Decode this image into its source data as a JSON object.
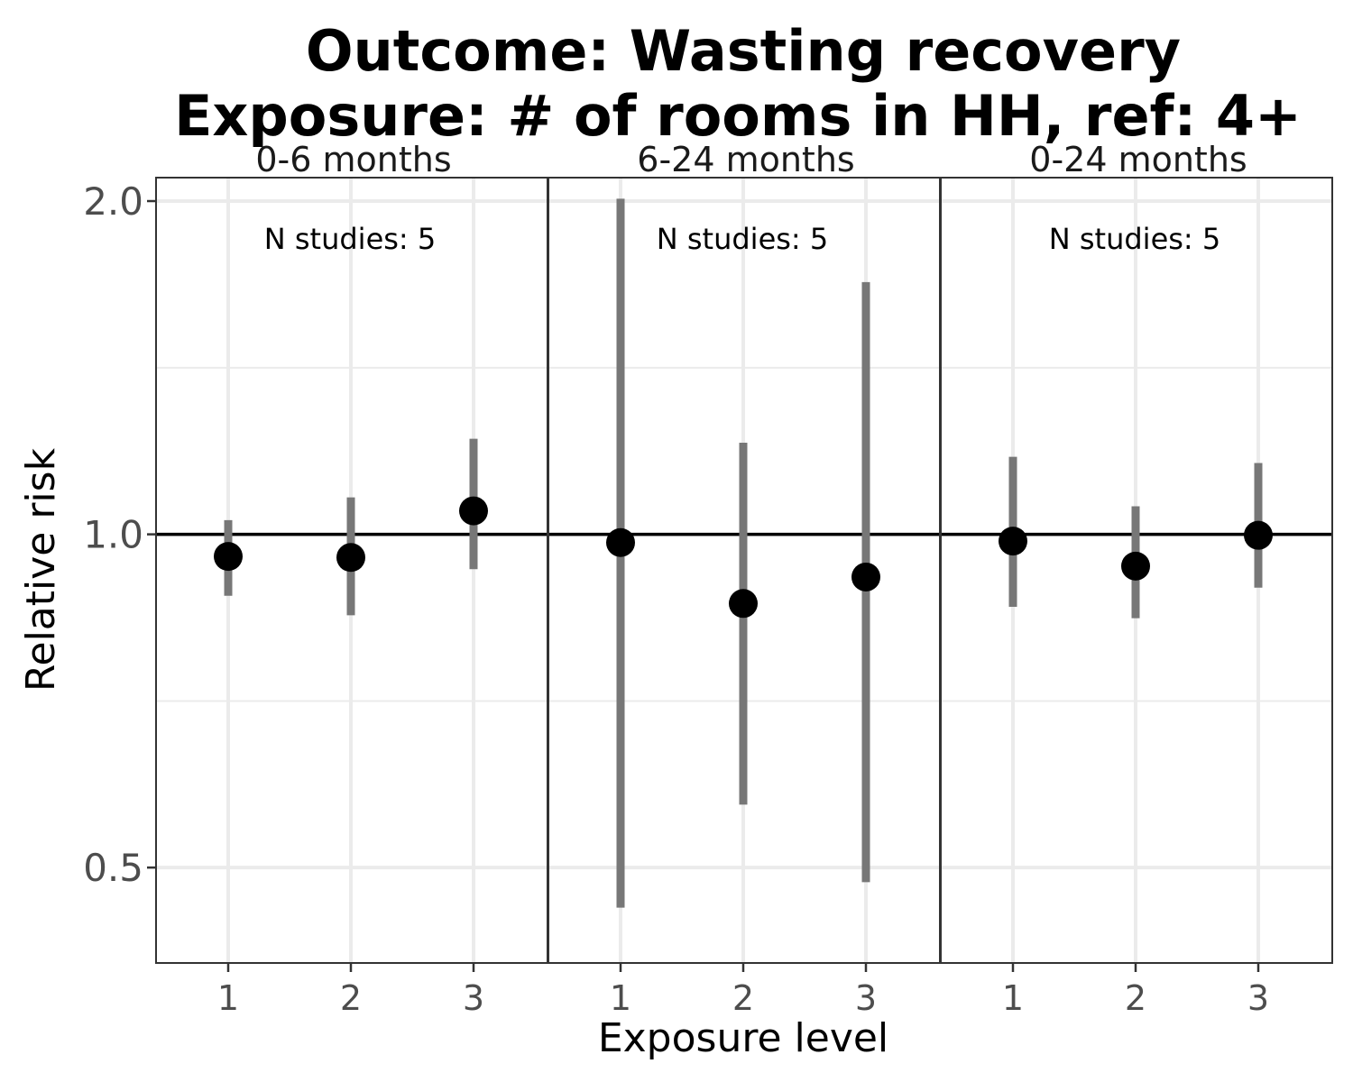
{
  "chart_data": {
    "type": "scatter",
    "title_line1": "Outcome: Wasting recovery",
    "title_line2": "Exposure: # of rooms in HH, ref: 4+",
    "xlabel": "Exposure level",
    "ylabel": "Relative risk",
    "y_scale": "log",
    "ylim": [
      0.41,
      2.1
    ],
    "y_ticks": [
      {
        "value": 0.5,
        "label": "0.5"
      },
      {
        "value": 1.0,
        "label": "1.0"
      },
      {
        "value": 2.0,
        "label": "2.0"
      }
    ],
    "y_minor_ticks": [
      0.707,
      1.414
    ],
    "x_ticks": [
      "1",
      "2",
      "3"
    ],
    "reference_line": 1.0,
    "grid": true,
    "colors": {
      "point": "#000000",
      "ci": "#777777",
      "grid": "#ebebeb",
      "panel_border": "#333333"
    },
    "panels": [
      {
        "strip": "0-6 months",
        "annotation": "N studies: 5",
        "points": [
          {
            "x": "1",
            "estimate": 0.955,
            "lower": 0.88,
            "upper": 1.03
          },
          {
            "x": "2",
            "estimate": 0.953,
            "lower": 0.845,
            "upper": 1.08
          },
          {
            "x": "3",
            "estimate": 1.05,
            "lower": 0.93,
            "upper": 1.22
          }
        ]
      },
      {
        "strip": "6-24 months",
        "annotation": "N studies: 5",
        "points": [
          {
            "x": "1",
            "estimate": 0.983,
            "lower": 0.46,
            "upper": 2.01
          },
          {
            "x": "2",
            "estimate": 0.866,
            "lower": 0.57,
            "upper": 1.21
          },
          {
            "x": "3",
            "estimate": 0.915,
            "lower": 0.485,
            "upper": 1.69
          }
        ]
      },
      {
        "strip": "0-24 months",
        "annotation": "N studies: 5",
        "points": [
          {
            "x": "1",
            "estimate": 0.986,
            "lower": 0.86,
            "upper": 1.175
          },
          {
            "x": "2",
            "estimate": 0.936,
            "lower": 0.84,
            "upper": 1.06
          },
          {
            "x": "3",
            "estimate": 0.998,
            "lower": 0.895,
            "upper": 1.16
          }
        ]
      }
    ]
  }
}
